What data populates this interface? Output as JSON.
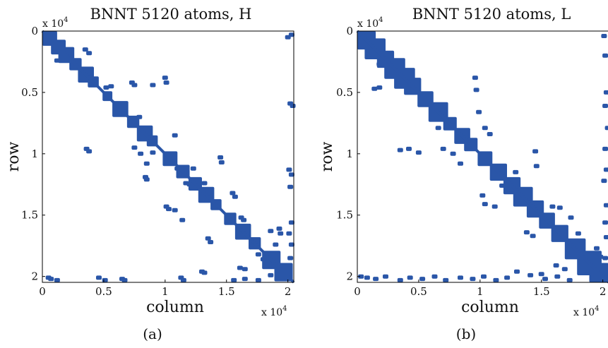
{
  "colors": {
    "marker": "#2a56a8",
    "frame": "#000000",
    "background": "#ffffff"
  },
  "chart_data": [
    {
      "type": "scatter",
      "title": "BNNT 5120 atoms, H",
      "caption": "(a)",
      "xlabel": "column",
      "ylabel": "row",
      "x_multiplier": "x 10",
      "x_multiplier_exp": "4",
      "y_multiplier": "x 10",
      "y_multiplier_exp": "4",
      "xlim": [
        0,
        20480
      ],
      "ylim": [
        0,
        20480
      ],
      "y_reversed": true,
      "x_ticks": [
        0,
        5000,
        10000,
        15000,
        20000
      ],
      "x_tick_labels": [
        "0",
        "0.5",
        "1",
        "1.5",
        "2"
      ],
      "y_ticks": [
        0,
        5000,
        10000,
        15000,
        20000
      ],
      "y_tick_labels": [
        "0",
        "0.5",
        "1",
        "1.5",
        "2"
      ],
      "diagonal_blocks": [
        [
          0,
          1200
        ],
        [
          700,
          1900
        ],
        [
          1300,
          2600
        ],
        [
          2200,
          3200
        ],
        [
          2900,
          4200
        ],
        [
          3700,
          4600
        ],
        [
          4900,
          5700
        ],
        [
          5700,
          7000
        ],
        [
          6900,
          7900
        ],
        [
          7700,
          9000
        ],
        [
          8500,
          9400
        ],
        [
          9800,
          11000
        ],
        [
          10900,
          12000
        ],
        [
          11900,
          13000
        ],
        [
          12700,
          14000
        ],
        [
          13700,
          14600
        ],
        [
          14800,
          15800
        ],
        [
          15700,
          17000
        ],
        [
          16800,
          17800
        ],
        [
          17900,
          19400
        ],
        [
          18900,
          20400
        ]
      ],
      "offdiag_points": [
        [
          20000,
          500
        ],
        [
          20300,
          300
        ],
        [
          20200,
          5900
        ],
        [
          20400,
          6100
        ],
        [
          20100,
          11300
        ],
        [
          20300,
          11700
        ],
        [
          20200,
          12700
        ],
        [
          20300,
          15600
        ],
        [
          20100,
          16500
        ],
        [
          20300,
          17400
        ],
        [
          20200,
          18500
        ],
        [
          500,
          20100
        ],
        [
          700,
          20200
        ],
        [
          1200,
          20300
        ],
        [
          4600,
          20100
        ],
        [
          5100,
          20300
        ],
        [
          6500,
          20200
        ],
        [
          6700,
          20300
        ],
        [
          11300,
          20100
        ],
        [
          11500,
          20300
        ],
        [
          13000,
          19600
        ],
        [
          13200,
          19700
        ],
        [
          15600,
          20300
        ],
        [
          16500,
          20200
        ],
        [
          17600,
          20300
        ],
        [
          18600,
          19900
        ],
        [
          1800,
          2100
        ],
        [
          2000,
          2300
        ],
        [
          1200,
          2400
        ],
        [
          3500,
          1500
        ],
        [
          3800,
          1800
        ],
        [
          5200,
          4600
        ],
        [
          5600,
          4500
        ],
        [
          7300,
          4200
        ],
        [
          7500,
          4400
        ],
        [
          9000,
          4400
        ],
        [
          10000,
          3800
        ],
        [
          10100,
          4200
        ],
        [
          6100,
          6000
        ],
        [
          6400,
          6300
        ],
        [
          3600,
          9600
        ],
        [
          3800,
          9800
        ],
        [
          7500,
          9500
        ],
        [
          8000,
          10000
        ],
        [
          7900,
          7000
        ],
        [
          10300,
          10200
        ],
        [
          8400,
          11900
        ],
        [
          8500,
          12100
        ],
        [
          11700,
          12400
        ],
        [
          12000,
          12500
        ],
        [
          13200,
          12400
        ],
        [
          14500,
          10300
        ],
        [
          14600,
          10700
        ],
        [
          10100,
          14300
        ],
        [
          10300,
          14500
        ],
        [
          10800,
          14600
        ],
        [
          11400,
          15400
        ],
        [
          15500,
          13200
        ],
        [
          15700,
          13500
        ],
        [
          13500,
          16900
        ],
        [
          13700,
          17200
        ],
        [
          16200,
          15200
        ],
        [
          16400,
          15400
        ],
        [
          17600,
          18200
        ],
        [
          18000,
          18600
        ],
        [
          18600,
          16300
        ],
        [
          19300,
          16100
        ],
        [
          19400,
          16500
        ],
        [
          16100,
          19300
        ],
        [
          16500,
          19400
        ],
        [
          19000,
          17400
        ],
        [
          10800,
          8500
        ],
        [
          8500,
          10800
        ],
        [
          9000,
          9900
        ],
        [
          11000,
          11200
        ],
        [
          12300,
          11200
        ]
      ]
    },
    {
      "type": "scatter",
      "title": "BNNT 5120 atoms, L",
      "caption": "(b)",
      "xlabel": "column",
      "ylabel": "row",
      "x_multiplier": "x 10",
      "x_multiplier_exp": "4",
      "y_multiplier": "x 10",
      "y_multiplier_exp": "4",
      "xlim": [
        0,
        20480
      ],
      "ylim": [
        0,
        20480
      ],
      "y_reversed": true,
      "x_ticks": [
        0,
        5000,
        10000,
        15000,
        20000
      ],
      "x_tick_labels": [
        "0",
        "0.5",
        "1",
        "1.5",
        "2"
      ],
      "y_ticks": [
        0,
        5000,
        10000,
        15000,
        20000
      ],
      "y_tick_labels": [
        "0",
        "0.5",
        "1",
        "1.5",
        "2"
      ],
      "diagonal_blocks": [
        [
          0,
          1500
        ],
        [
          600,
          2300
        ],
        [
          1600,
          3000
        ],
        [
          2200,
          3900
        ],
        [
          3000,
          4700
        ],
        [
          3800,
          5200
        ],
        [
          4900,
          6200
        ],
        [
          5800,
          7400
        ],
        [
          7000,
          8100
        ],
        [
          7900,
          9200
        ],
        [
          8700,
          9800
        ],
        [
          9800,
          11000
        ],
        [
          10800,
          12200
        ],
        [
          11900,
          13300
        ],
        [
          12700,
          14300
        ],
        [
          13800,
          15200
        ],
        [
          14800,
          16100
        ],
        [
          15800,
          17200
        ],
        [
          16900,
          18600
        ],
        [
          17900,
          19900
        ],
        [
          18900,
          20480
        ]
      ],
      "offdiag_points": [
        [
          20100,
          400
        ],
        [
          20200,
          2000
        ],
        [
          20300,
          5000
        ],
        [
          20200,
          6100
        ],
        [
          20400,
          7900
        ],
        [
          20200,
          9600
        ],
        [
          20300,
          11300
        ],
        [
          20100,
          12200
        ],
        [
          20300,
          14200
        ],
        [
          20200,
          15600
        ],
        [
          20300,
          16800
        ],
        [
          20200,
          18500
        ],
        [
          300,
          20000
        ],
        [
          800,
          20100
        ],
        [
          1500,
          20200
        ],
        [
          2300,
          20000
        ],
        [
          3500,
          20300
        ],
        [
          4300,
          20100
        ],
        [
          5300,
          20200
        ],
        [
          6300,
          20000
        ],
        [
          7200,
          20300
        ],
        [
          8400,
          20100
        ],
        [
          9400,
          20200
        ],
        [
          10300,
          20000
        ],
        [
          11300,
          20300
        ],
        [
          12200,
          20100
        ],
        [
          13000,
          19600
        ],
        [
          14100,
          19900
        ],
        [
          15300,
          20200
        ],
        [
          16300,
          20000
        ],
        [
          17300,
          20300
        ],
        [
          1800,
          2700
        ],
        [
          1400,
          4700
        ],
        [
          1800,
          4600
        ],
        [
          4200,
          4800
        ],
        [
          3500,
          9700
        ],
        [
          4200,
          9600
        ],
        [
          5000,
          9900
        ],
        [
          7000,
          9600
        ],
        [
          7800,
          10000
        ],
        [
          9600,
          3800
        ],
        [
          9700,
          4800
        ],
        [
          9900,
          6600
        ],
        [
          10400,
          7900
        ],
        [
          10200,
          13400
        ],
        [
          10400,
          14100
        ],
        [
          11200,
          14300
        ],
        [
          14500,
          9800
        ],
        [
          14600,
          11000
        ],
        [
          15900,
          14300
        ],
        [
          16500,
          14400
        ],
        [
          17400,
          15200
        ],
        [
          18000,
          16500
        ],
        [
          18300,
          17100
        ],
        [
          19500,
          17700
        ],
        [
          19800,
          18400
        ],
        [
          13800,
          16400
        ],
        [
          14300,
          16700
        ],
        [
          16200,
          19100
        ],
        [
          16900,
          19400
        ],
        [
          15000,
          19800
        ],
        [
          10800,
          8400
        ],
        [
          8400,
          10800
        ],
        [
          11800,
          12600
        ],
        [
          12900,
          11500
        ],
        [
          6600,
          7900
        ]
      ]
    }
  ]
}
